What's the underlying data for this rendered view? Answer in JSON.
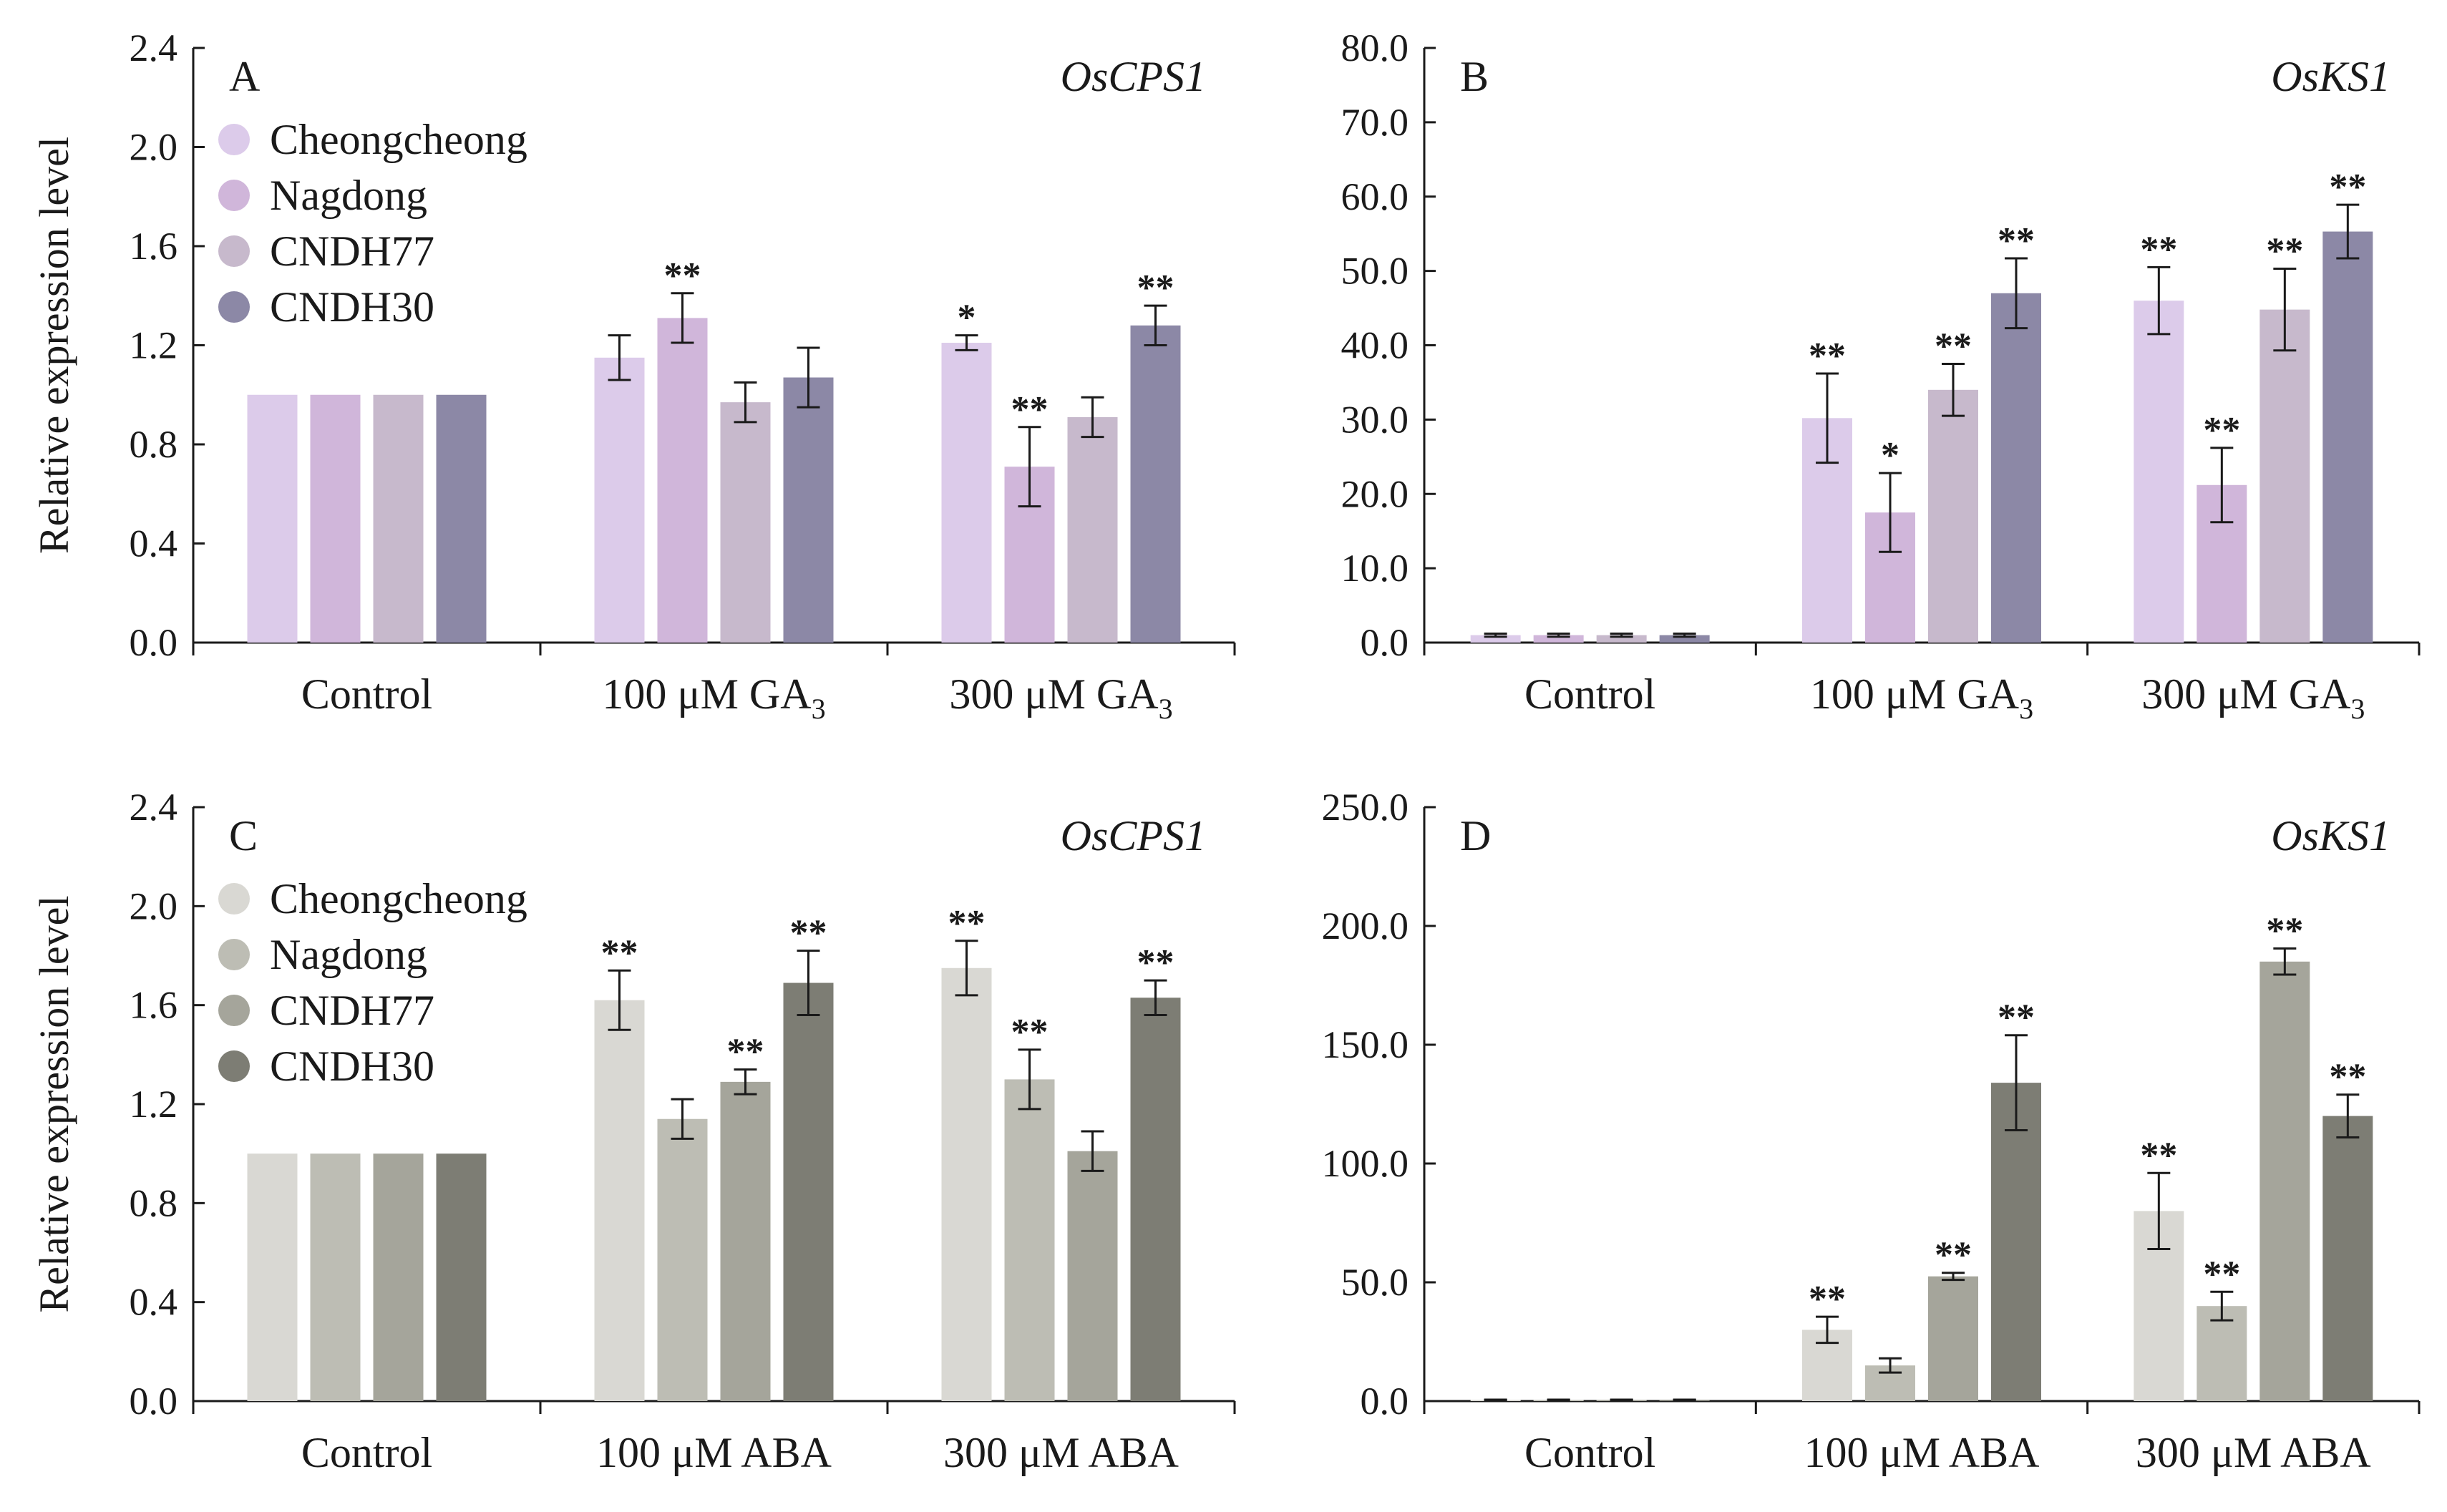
{
  "figure": {
    "ylabel": "Relative expression level",
    "series": [
      "Cheongcheong",
      "Nagdong",
      "CNDH77",
      "CNDH30"
    ],
    "colors": {
      "ga": [
        "#dccbea",
        "#d0b6da",
        "#c7b9cc",
        "#8c88a6"
      ],
      "aba": [
        "#d9d8d3",
        "#bdbdb4",
        "#a5a59b",
        "#7d7d74"
      ]
    }
  },
  "chart_data": [
    {
      "type": "bar",
      "panel": "A",
      "gene": "OsCPS1",
      "palette": "ga",
      "legend": true,
      "ylabel": "Relative expression level",
      "categories": [
        {
          "main": "Control",
          "sub": ""
        },
        {
          "main": "100 μM GA",
          "sub": "3"
        },
        {
          "main": "300 μM GA",
          "sub": "3"
        }
      ],
      "ylim": [
        0,
        2.4
      ],
      "yticks": [
        "0.0",
        "0.4",
        "0.8",
        "1.2",
        "1.6",
        "2.0",
        "2.4"
      ],
      "series": [
        {
          "name": "Cheongcheong",
          "values": [
            1.0,
            1.15,
            1.21
          ],
          "errors": [
            0.0,
            0.09,
            0.03
          ],
          "sig": [
            "",
            "",
            "*"
          ]
        },
        {
          "name": "Nagdong",
          "values": [
            1.0,
            1.31,
            0.71
          ],
          "errors": [
            0.0,
            0.1,
            0.16
          ],
          "sig": [
            "",
            "**",
            "**"
          ]
        },
        {
          "name": "CNDH77",
          "values": [
            1.0,
            0.97,
            0.91
          ],
          "errors": [
            0.0,
            0.08,
            0.08
          ],
          "sig": [
            "",
            "",
            ""
          ]
        },
        {
          "name": "CNDH30",
          "values": [
            1.0,
            1.07,
            1.28
          ],
          "errors": [
            0.0,
            0.12,
            0.08
          ],
          "sig": [
            "",
            "",
            "**"
          ]
        }
      ]
    },
    {
      "type": "bar",
      "panel": "B",
      "gene": "OsKS1",
      "palette": "ga",
      "legend": false,
      "ylabel": "",
      "categories": [
        {
          "main": "Control",
          "sub": ""
        },
        {
          "main": "100 μM GA",
          "sub": "3"
        },
        {
          "main": "300 μM GA",
          "sub": "3"
        }
      ],
      "ylim": [
        0,
        80
      ],
      "yticks": [
        "0.0",
        "10.0",
        "20.0",
        "30.0",
        "40.0",
        "50.0",
        "60.0",
        "70.0",
        "80.0"
      ],
      "series": [
        {
          "name": "Cheongcheong",
          "values": [
            1.0,
            30.2,
            46.0
          ],
          "errors": [
            0.2,
            6.0,
            4.5
          ],
          "sig": [
            "",
            "**",
            "**"
          ]
        },
        {
          "name": "Nagdong",
          "values": [
            1.0,
            17.5,
            21.2
          ],
          "errors": [
            0.2,
            5.3,
            5.0
          ],
          "sig": [
            "",
            "*",
            "**"
          ]
        },
        {
          "name": "CNDH77",
          "values": [
            1.0,
            34.0,
            44.8
          ],
          "errors": [
            0.2,
            3.5,
            5.5
          ],
          "sig": [
            "",
            "**",
            "**"
          ]
        },
        {
          "name": "CNDH30",
          "values": [
            1.0,
            47.0,
            55.3
          ],
          "errors": [
            0.2,
            4.7,
            3.6
          ],
          "sig": [
            "",
            "**",
            "**"
          ]
        }
      ]
    },
    {
      "type": "bar",
      "panel": "C",
      "gene": "OsCPS1",
      "palette": "aba",
      "legend": true,
      "ylabel": "Relative expression level",
      "categories": [
        {
          "main": "Control",
          "sub": ""
        },
        {
          "main": "100 μM ABA",
          "sub": ""
        },
        {
          "main": "300 μM ABA",
          "sub": ""
        }
      ],
      "ylim": [
        0,
        2.4
      ],
      "yticks": [
        "0.0",
        "0.4",
        "0.8",
        "1.2",
        "1.6",
        "2.0",
        "2.4"
      ],
      "series": [
        {
          "name": "Cheongcheong",
          "values": [
            1.0,
            1.62,
            1.75
          ],
          "errors": [
            0.0,
            0.12,
            0.11
          ],
          "sig": [
            "",
            "**",
            "**"
          ]
        },
        {
          "name": "Nagdong",
          "values": [
            1.0,
            1.14,
            1.3
          ],
          "errors": [
            0.0,
            0.08,
            0.12
          ],
          "sig": [
            "",
            "",
            "**"
          ]
        },
        {
          "name": "CNDH77",
          "values": [
            1.0,
            1.29,
            1.01
          ],
          "errors": [
            0.0,
            0.05,
            0.08
          ],
          "sig": [
            "",
            "**",
            ""
          ]
        },
        {
          "name": "CNDH30",
          "values": [
            1.0,
            1.69,
            1.63
          ],
          "errors": [
            0.0,
            0.13,
            0.07
          ],
          "sig": [
            "",
            "**",
            "**"
          ]
        }
      ]
    },
    {
      "type": "bar",
      "panel": "D",
      "gene": "OsKS1",
      "palette": "aba",
      "legend": false,
      "ylabel": "",
      "categories": [
        {
          "main": "Control",
          "sub": ""
        },
        {
          "main": "100 μM ABA",
          "sub": ""
        },
        {
          "main": "300 μM ABA",
          "sub": ""
        }
      ],
      "ylim": [
        0,
        250
      ],
      "yticks": [
        "0.0",
        "50.0",
        "100.0",
        "150.0",
        "200.0",
        "250.0"
      ],
      "series": [
        {
          "name": "Cheongcheong",
          "values": [
            0.5,
            30.0,
            80.0
          ],
          "errors": [
            0.1,
            5.5,
            16.0
          ],
          "sig": [
            "",
            "**",
            "**"
          ]
        },
        {
          "name": "Nagdong",
          "values": [
            0.5,
            15.0,
            40.0
          ],
          "errors": [
            0.1,
            3.0,
            6.0
          ],
          "sig": [
            "",
            "",
            "**"
          ]
        },
        {
          "name": "CNDH77",
          "values": [
            0.5,
            52.5,
            185.0
          ],
          "errors": [
            0.1,
            1.5,
            5.5
          ],
          "sig": [
            "",
            "**",
            "**"
          ]
        },
        {
          "name": "CNDH30",
          "values": [
            0.5,
            134.0,
            120.0
          ],
          "errors": [
            0.1,
            20.0,
            9.0
          ],
          "sig": [
            "",
            "**",
            "**"
          ]
        }
      ]
    }
  ]
}
